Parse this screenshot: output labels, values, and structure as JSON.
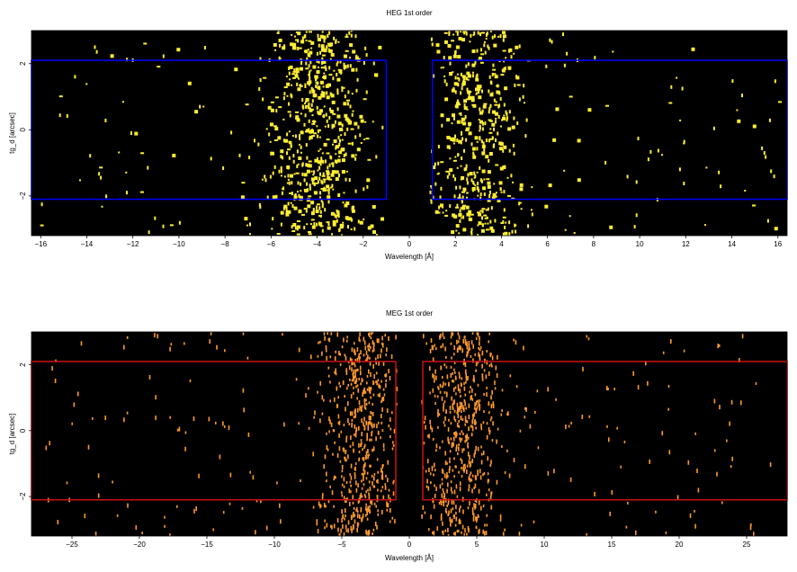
{
  "chart_data": [
    {
      "type": "heatmap",
      "title": "HEG 1st order",
      "xlabel": "Wavelength [Å]",
      "ylabel": "tg_d [arcsec]",
      "xlim": [
        -16.4,
        16.4
      ],
      "ylim": [
        -3.2,
        3.0
      ],
      "xticks": [
        -16,
        -14,
        -12,
        -10,
        -8,
        -6,
        -4,
        -2,
        0,
        2,
        4,
        6,
        8,
        10,
        12,
        14,
        16
      ],
      "xtick_labels": [
        "−16",
        "−14",
        "−12",
        "−10",
        "−8",
        "−6",
        "−4",
        "−2",
        "0",
        "2",
        "4",
        "6",
        "8",
        "10",
        "12",
        "14",
        "16"
      ],
      "yticks": [
        -2,
        0,
        2
      ],
      "ytick_labels": [
        "−2",
        "0",
        "2"
      ],
      "background_color": "#000000",
      "event_color": "#ffee33",
      "box_color": "#0000ff",
      "regions": [
        {
          "x": [
            -16.4,
            -1.0
          ],
          "y": [
            -2.1,
            2.1
          ]
        },
        {
          "x": [
            1.0,
            16.4
          ],
          "y": [
            -2.1,
            2.1
          ]
        }
      ],
      "event_clusters": [
        {
          "center": -4.0,
          "width": 1.9,
          "count": 620
        },
        {
          "center": 3.0,
          "width": 1.9,
          "count": 480
        },
        {
          "center": -9.0,
          "width": 4.5,
          "count": 90
        },
        {
          "center": 9.0,
          "width": 4.5,
          "count": 90
        }
      ]
    },
    {
      "type": "heatmap",
      "title": "MEG 1st order",
      "xlabel": "Wavelength [Å]",
      "ylabel": "tg_d [arcsec]",
      "xlim": [
        -28,
        28
      ],
      "ylim": [
        -3.2,
        3.0
      ],
      "xticks": [
        -25,
        -20,
        -15,
        -10,
        -5,
        0,
        5,
        10,
        15,
        20,
        25
      ],
      "xtick_labels": [
        "−25",
        "−20",
        "−15",
        "−10",
        "−5",
        "0",
        "5",
        "10",
        "15",
        "20",
        "25"
      ],
      "yticks": [
        -2,
        0,
        2
      ],
      "ytick_labels": [
        "−2",
        "0",
        "2"
      ],
      "background_color": "#000000",
      "event_color": "#ff9a2e",
      "box_color": "#cc1111",
      "regions": [
        {
          "x": [
            -28,
            -1.0
          ],
          "y": [
            -2.1,
            2.1
          ]
        },
        {
          "x": [
            1.0,
            28
          ],
          "y": [
            -2.1,
            2.1
          ]
        }
      ],
      "event_clusters": [
        {
          "center": -3.5,
          "width": 2.8,
          "count": 560
        },
        {
          "center": 3.8,
          "width": 2.8,
          "count": 560
        },
        {
          "center": -15.0,
          "width": 9.0,
          "count": 110
        },
        {
          "center": 15.0,
          "width": 9.0,
          "count": 110
        }
      ]
    }
  ]
}
